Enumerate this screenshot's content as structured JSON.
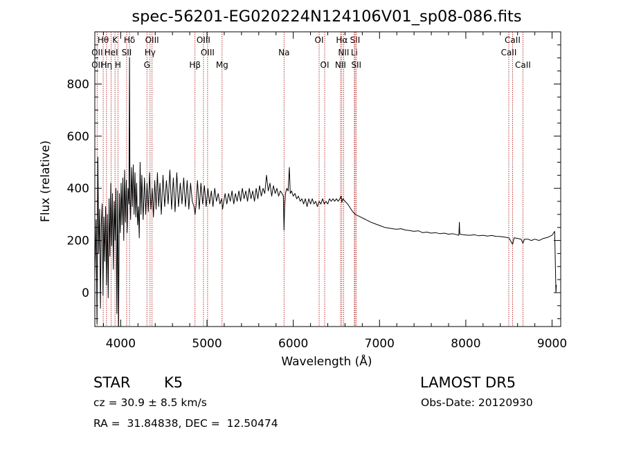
{
  "chart_data": {
    "type": "line",
    "title": "spec-56201-EG020224N124106V01_sp08-086.fits",
    "xlabel": "Wavelength (Å)",
    "ylabel": "Flux (relative)",
    "xlim": [
      3700,
      9100
    ],
    "ylim": [
      -130,
      1000
    ],
    "xticks": [
      4000,
      5000,
      6000,
      7000,
      8000,
      9000
    ],
    "yticks": [
      0,
      200,
      400,
      600,
      800
    ],
    "grid": false,
    "line_color": "#000000",
    "marker_color": "#b22222",
    "series": [
      {
        "values": [
          [
            3700,
            60
          ],
          [
            3715,
            280
          ],
          [
            3725,
            -120
          ],
          [
            3735,
            520
          ],
          [
            3745,
            150
          ],
          [
            3755,
            320
          ],
          [
            3765,
            -60
          ],
          [
            3775,
            260
          ],
          [
            3785,
            340
          ],
          [
            3795,
            -10
          ],
          [
            3805,
            290
          ],
          [
            3815,
            120
          ],
          [
            3825,
            330
          ],
          [
            3835,
            30
          ],
          [
            3845,
            300
          ],
          [
            3855,
            -20
          ],
          [
            3865,
            360
          ],
          [
            3875,
            140
          ],
          [
            3885,
            420
          ],
          [
            3895,
            180
          ],
          [
            3905,
            380
          ],
          [
            3915,
            90
          ],
          [
            3925,
            350
          ],
          [
            3935,
            200
          ],
          [
            3945,
            400
          ],
          [
            3955,
            -80
          ],
          [
            3965,
            390
          ],
          [
            3975,
            -130
          ],
          [
            3985,
            380
          ],
          [
            3995,
            230
          ],
          [
            4005,
            420
          ],
          [
            4015,
            260
          ],
          [
            4025,
            440
          ],
          [
            4035,
            200
          ],
          [
            4045,
            470
          ],
          [
            4055,
            270
          ],
          [
            4065,
            430
          ],
          [
            4075,
            230
          ],
          [
            4085,
            400
          ],
          [
            4095,
            340
          ],
          [
            4102,
            900
          ],
          [
            4108,
            360
          ],
          [
            4115,
            280
          ],
          [
            4125,
            480
          ],
          [
            4135,
            330
          ],
          [
            4145,
            490
          ],
          [
            4155,
            300
          ],
          [
            4165,
            460
          ],
          [
            4175,
            290
          ],
          [
            4185,
            420
          ],
          [
            4195,
            260
          ],
          [
            4205,
            330
          ],
          [
            4215,
            210
          ],
          [
            4225,
            500
          ],
          [
            4235,
            300
          ],
          [
            4245,
            450
          ],
          [
            4260,
            280
          ],
          [
            4275,
            440
          ],
          [
            4290,
            300
          ],
          [
            4305,
            420
          ],
          [
            4320,
            310
          ],
          [
            4335,
            460
          ],
          [
            4350,
            320
          ],
          [
            4365,
            400
          ],
          [
            4380,
            290
          ],
          [
            4395,
            430
          ],
          [
            4410,
            320
          ],
          [
            4425,
            460
          ],
          [
            4440,
            330
          ],
          [
            4455,
            420
          ],
          [
            4470,
            300
          ],
          [
            4490,
            450
          ],
          [
            4510,
            330
          ],
          [
            4530,
            430
          ],
          [
            4550,
            340
          ],
          [
            4570,
            470
          ],
          [
            4590,
            320
          ],
          [
            4610,
            440
          ],
          [
            4630,
            310
          ],
          [
            4650,
            460
          ],
          [
            4670,
            330
          ],
          [
            4690,
            420
          ],
          [
            4710,
            340
          ],
          [
            4730,
            440
          ],
          [
            4750,
            330
          ],
          [
            4770,
            430
          ],
          [
            4790,
            320
          ],
          [
            4810,
            420
          ],
          [
            4830,
            350
          ],
          [
            4850,
            330
          ],
          [
            4862,
            300
          ],
          [
            4875,
            340
          ],
          [
            4890,
            430
          ],
          [
            4910,
            320
          ],
          [
            4930,
            420
          ],
          [
            4950,
            340
          ],
          [
            4970,
            410
          ],
          [
            4990,
            330
          ],
          [
            5010,
            400
          ],
          [
            5030,
            340
          ],
          [
            5050,
            390
          ],
          [
            5070,
            330
          ],
          [
            5090,
            400
          ],
          [
            5110,
            350
          ],
          [
            5130,
            380
          ],
          [
            5150,
            340
          ],
          [
            5170,
            360
          ],
          [
            5180,
            320
          ],
          [
            5195,
            350
          ],
          [
            5210,
            380
          ],
          [
            5230,
            340
          ],
          [
            5250,
            380
          ],
          [
            5270,
            350
          ],
          [
            5290,
            390
          ],
          [
            5310,
            340
          ],
          [
            5330,
            380
          ],
          [
            5350,
            350
          ],
          [
            5370,
            390
          ],
          [
            5390,
            350
          ],
          [
            5410,
            400
          ],
          [
            5430,
            360
          ],
          [
            5450,
            390
          ],
          [
            5470,
            350
          ],
          [
            5490,
            400
          ],
          [
            5510,
            360
          ],
          [
            5530,
            390
          ],
          [
            5550,
            350
          ],
          [
            5570,
            400
          ],
          [
            5590,
            360
          ],
          [
            5610,
            410
          ],
          [
            5630,
            370
          ],
          [
            5650,
            400
          ],
          [
            5670,
            380
          ],
          [
            5690,
            450
          ],
          [
            5710,
            390
          ],
          [
            5730,
            420
          ],
          [
            5750,
            370
          ],
          [
            5770,
            410
          ],
          [
            5790,
            380
          ],
          [
            5810,
            400
          ],
          [
            5830,
            370
          ],
          [
            5850,
            390
          ],
          [
            5870,
            380
          ],
          [
            5885,
            370
          ],
          [
            5893,
            240
          ],
          [
            5900,
            330
          ],
          [
            5910,
            380
          ],
          [
            5925,
            400
          ],
          [
            5940,
            390
          ],
          [
            5955,
            480
          ],
          [
            5965,
            380
          ],
          [
            5980,
            390
          ],
          [
            6000,
            370
          ],
          [
            6020,
            380
          ],
          [
            6040,
            360
          ],
          [
            6060,
            370
          ],
          [
            6080,
            350
          ],
          [
            6100,
            360
          ],
          [
            6120,
            340
          ],
          [
            6140,
            360
          ],
          [
            6160,
            330
          ],
          [
            6180,
            360
          ],
          [
            6200,
            340
          ],
          [
            6220,
            360
          ],
          [
            6240,
            340
          ],
          [
            6260,
            350
          ],
          [
            6280,
            330
          ],
          [
            6300,
            350
          ],
          [
            6320,
            340
          ],
          [
            6340,
            360
          ],
          [
            6360,
            340
          ],
          [
            6380,
            350
          ],
          [
            6400,
            340
          ],
          [
            6420,
            360
          ],
          [
            6440,
            350
          ],
          [
            6460,
            360
          ],
          [
            6480,
            350
          ],
          [
            6500,
            360
          ],
          [
            6520,
            350
          ],
          [
            6540,
            360
          ],
          [
            6555,
            370
          ],
          [
            6563,
            345
          ],
          [
            6575,
            360
          ],
          [
            6600,
            350
          ],
          [
            6630,
            340
          ],
          [
            6660,
            325
          ],
          [
            6690,
            310
          ],
          [
            6720,
            300
          ],
          [
            6750,
            295
          ],
          [
            6780,
            290
          ],
          [
            6810,
            285
          ],
          [
            6840,
            280
          ],
          [
            6870,
            275
          ],
          [
            6900,
            270
          ],
          [
            6940,
            265
          ],
          [
            6980,
            260
          ],
          [
            7020,
            255
          ],
          [
            7060,
            250
          ],
          [
            7100,
            248
          ],
          [
            7150,
            245
          ],
          [
            7200,
            243
          ],
          [
            7250,
            245
          ],
          [
            7300,
            240
          ],
          [
            7350,
            238
          ],
          [
            7400,
            235
          ],
          [
            7450,
            237
          ],
          [
            7500,
            230
          ],
          [
            7550,
            232
          ],
          [
            7600,
            228
          ],
          [
            7650,
            230
          ],
          [
            7700,
            226
          ],
          [
            7750,
            228
          ],
          [
            7800,
            224
          ],
          [
            7850,
            226
          ],
          [
            7900,
            222
          ],
          [
            7920,
            220
          ],
          [
            7925,
            270
          ],
          [
            7930,
            225
          ],
          [
            7950,
            223
          ],
          [
            8000,
            221
          ],
          [
            8050,
            220
          ],
          [
            8100,
            222
          ],
          [
            8150,
            218
          ],
          [
            8200,
            220
          ],
          [
            8250,
            217
          ],
          [
            8300,
            219
          ],
          [
            8350,
            216
          ],
          [
            8400,
            215
          ],
          [
            8450,
            213
          ],
          [
            8500,
            210
          ],
          [
            8542,
            185
          ],
          [
            8560,
            210
          ],
          [
            8600,
            208
          ],
          [
            8640,
            205
          ],
          [
            8662,
            190
          ],
          [
            8680,
            205
          ],
          [
            8720,
            205
          ],
          [
            8760,
            200
          ],
          [
            8800,
            205
          ],
          [
            8850,
            200
          ],
          [
            8900,
            208
          ],
          [
            8950,
            212
          ],
          [
            9000,
            220
          ],
          [
            9030,
            235
          ],
          [
            9040,
            80
          ],
          [
            9045,
            0
          ],
          [
            9050,
            30
          ]
        ]
      }
    ],
    "lines": [
      {
        "label": "Hθ",
        "x": 3797,
        "row": 0
      },
      {
        "label": "OII",
        "x": 3727,
        "row": 1
      },
      {
        "label": "OII",
        "x": 3727,
        "row": 2
      },
      {
        "label": "K",
        "x": 3934,
        "row": 0
      },
      {
        "label": "HeI",
        "x": 3889,
        "row": 1
      },
      {
        "label": "Hη",
        "x": 3835,
        "row": 2
      },
      {
        "label": "H",
        "x": 3968,
        "row": 2
      },
      {
        "label": "SII",
        "x": 4069,
        "row": 1
      },
      {
        "label": "Hδ",
        "x": 4102,
        "row": 0
      },
      {
        "label": "OIII",
        "x": 4363,
        "row": 0
      },
      {
        "label": "Hγ",
        "x": 4340,
        "row": 1
      },
      {
        "label": "G",
        "x": 4304,
        "row": 2
      },
      {
        "label": "OIII",
        "x": 4959,
        "row": 0
      },
      {
        "label": "OIII",
        "x": 5007,
        "row": 1
      },
      {
        "label": "Hβ",
        "x": 4861,
        "row": 2
      },
      {
        "label": "Mg",
        "x": 5175,
        "row": 2
      },
      {
        "label": "Na",
        "x": 5893,
        "row": 1
      },
      {
        "label": "OI",
        "x": 6300,
        "row": 0
      },
      {
        "label": "OI",
        "x": 6364,
        "row": 2
      },
      {
        "label": "Hα",
        "x": 6563,
        "row": 0
      },
      {
        "label": "SII",
        "x": 6717,
        "row": 0
      },
      {
        "label": "NII",
        "x": 6584,
        "row": 1
      },
      {
        "label": "Li",
        "x": 6708,
        "row": 1
      },
      {
        "label": "NII",
        "x": 6548,
        "row": 2
      },
      {
        "label": "SII",
        "x": 6731,
        "row": 2
      },
      {
        "label": "CaII",
        "x": 8542,
        "row": 0
      },
      {
        "label": "CaII",
        "x": 8498,
        "row": 1
      },
      {
        "label": "CaII",
        "x": 8662,
        "row": 2
      }
    ]
  },
  "info": {
    "class": "STAR",
    "subclass": "K5",
    "survey": "LAMOST DR5",
    "cz": "cz = 30.9 ± 8.5 km/s",
    "obs_date": "Obs-Date: 20120930",
    "coords": "RA =  31.84838, DEC =  12.50474"
  }
}
